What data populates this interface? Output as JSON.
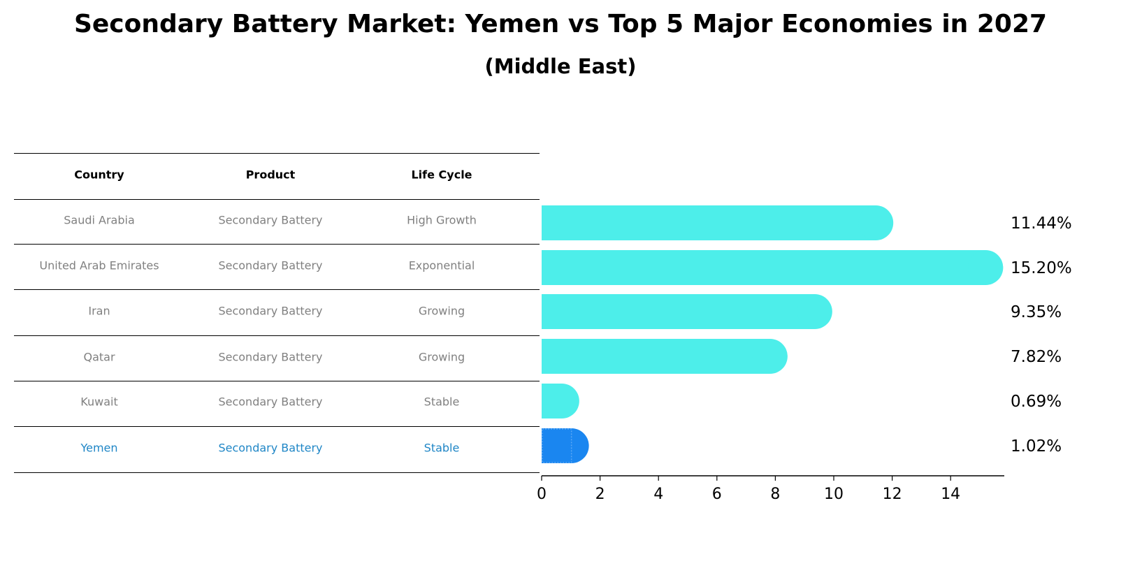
{
  "title": "Secondary Battery Market: Yemen vs Top 5 Major Economies in 2027",
  "subtitle": "(Middle East)",
  "table": {
    "headers": [
      "Country",
      "Product",
      "Life Cycle"
    ],
    "rows": [
      {
        "country": "Saudi Arabia",
        "product": "Secondary Battery",
        "life_cycle": "High Growth"
      },
      {
        "country": "United Arab Emirates",
        "product": "Secondary Battery",
        "life_cycle": "Exponential"
      },
      {
        "country": "Iran",
        "product": "Secondary Battery",
        "life_cycle": "Growing"
      },
      {
        "country": "Qatar",
        "product": "Secondary Battery",
        "life_cycle": "Growing"
      },
      {
        "country": "Kuwait",
        "product": "Secondary Battery",
        "life_cycle": "Stable"
      },
      {
        "country": "Yemen",
        "product": "Secondary Battery",
        "life_cycle": "Stable",
        "highlight": true
      }
    ]
  },
  "chart_data": {
    "type": "bar",
    "orientation": "horizontal",
    "categories": [
      "Saudi Arabia",
      "United Arab Emirates",
      "Iran",
      "Qatar",
      "Kuwait",
      "Yemen"
    ],
    "values": [
      11.44,
      15.2,
      9.35,
      7.82,
      0.69,
      1.02
    ],
    "value_labels": [
      "11.44%",
      "15.20%",
      "9.35%",
      "7.82%",
      "0.69%",
      "1.02%"
    ],
    "xlim": [
      0,
      16
    ],
    "xticks": [
      0,
      2,
      4,
      6,
      8,
      10,
      12,
      14
    ],
    "highlight_category": "Yemen",
    "colors": {
      "default": "#4deeea",
      "highlight": "#1a86f0"
    }
  }
}
